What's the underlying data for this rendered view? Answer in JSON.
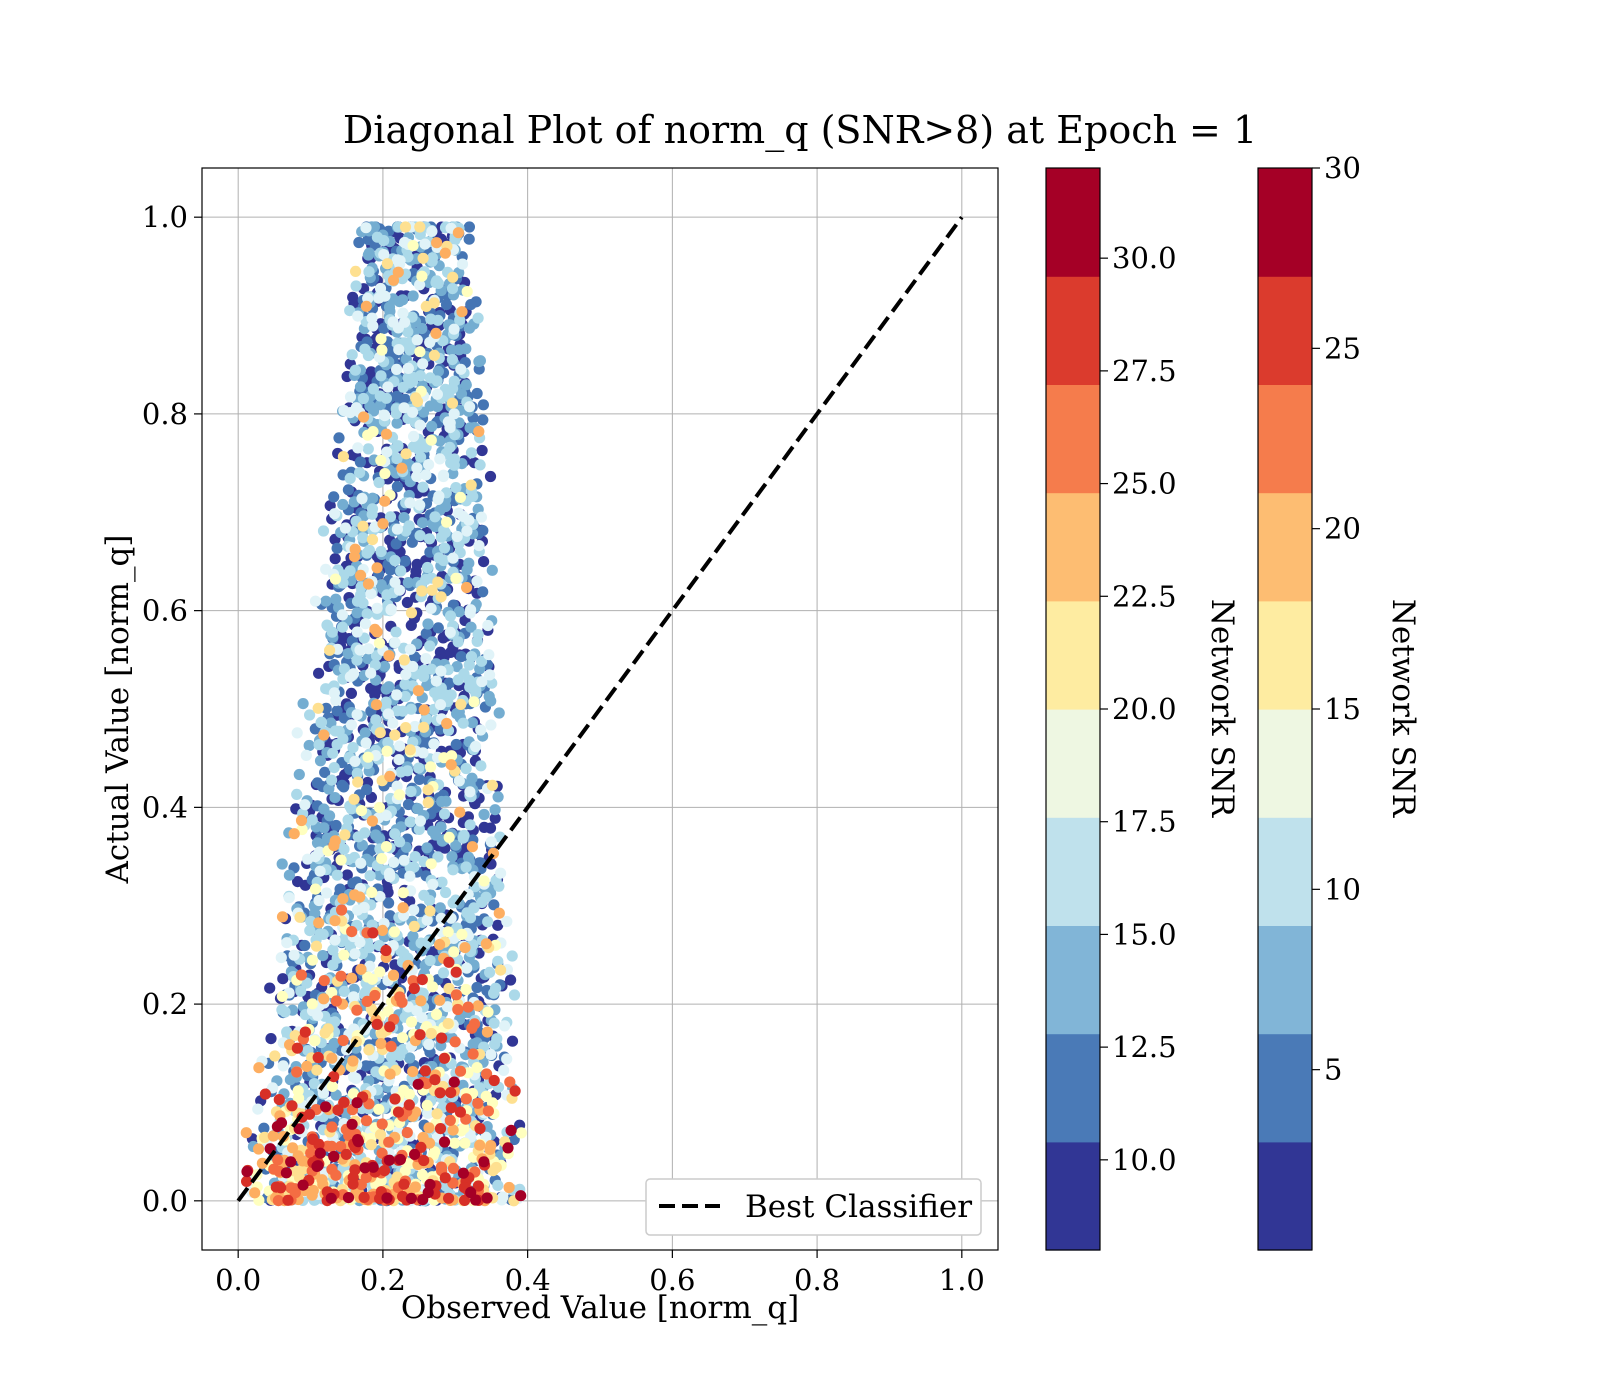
{
  "chart_data": {
    "type": "scatter",
    "title": "Diagonal Plot of norm_q (SNR>8) at Epoch = 1",
    "xlabel": "Observed Value [norm_q]",
    "ylabel": "Actual Value [norm_q]",
    "xlim": [
      -0.05,
      1.05
    ],
    "ylim": [
      -0.05,
      1.05
    ],
    "xticks": [
      "0.0",
      "0.2",
      "0.4",
      "0.6",
      "0.8",
      "1.0"
    ],
    "yticks": [
      "0.0",
      "0.2",
      "0.4",
      "0.6",
      "0.8",
      "1.0"
    ],
    "grid": true,
    "legend": {
      "placement": "lower-right",
      "entries": [
        "Best Classifier"
      ]
    },
    "reference_line": {
      "name": "Best Classifier",
      "x": [
        0.0,
        1.0
      ],
      "y": [
        0.0,
        1.0
      ],
      "style": "dashed",
      "color": "#000000"
    },
    "color_encoding": "Network SNR",
    "points_summary": {
      "x_range": [
        0.01,
        0.42
      ],
      "y_range": [
        0.0,
        0.99
      ],
      "note": "dense cloud; high-SNR (red/orange) points concentrated at low norm_q (y < 0.35)"
    },
    "colorbars": [
      {
        "label": "Network SNR",
        "range": [
          8,
          32
        ],
        "ticks": [
          "10.0",
          "12.5",
          "15.0",
          "17.5",
          "20.0",
          "22.5",
          "25.0",
          "27.5",
          "30.0"
        ],
        "tick_values": [
          10,
          12.5,
          15,
          17.5,
          20,
          22.5,
          25,
          27.5,
          30
        ]
      },
      {
        "label": "Network SNR",
        "range": [
          0,
          30
        ],
        "ticks": [
          "5",
          "10",
          "15",
          "20",
          "25",
          "30"
        ],
        "tick_values": [
          5,
          10,
          15,
          20,
          25,
          30
        ]
      }
    ],
    "palette": [
      "#313695",
      "#4575b4",
      "#74add1",
      "#abd9e9",
      "#e0f3f8",
      "#ffffbf",
      "#fee090",
      "#fdae61",
      "#f46d43",
      "#d73027",
      "#a50026"
    ],
    "colorbar_bands": [
      "#313695",
      "#4a7ab7",
      "#81b5d7",
      "#bfe1ec",
      "#eef7e2",
      "#feeca1",
      "#fdbd72",
      "#f57c4c",
      "#db3b2d",
      "#a50026"
    ]
  }
}
